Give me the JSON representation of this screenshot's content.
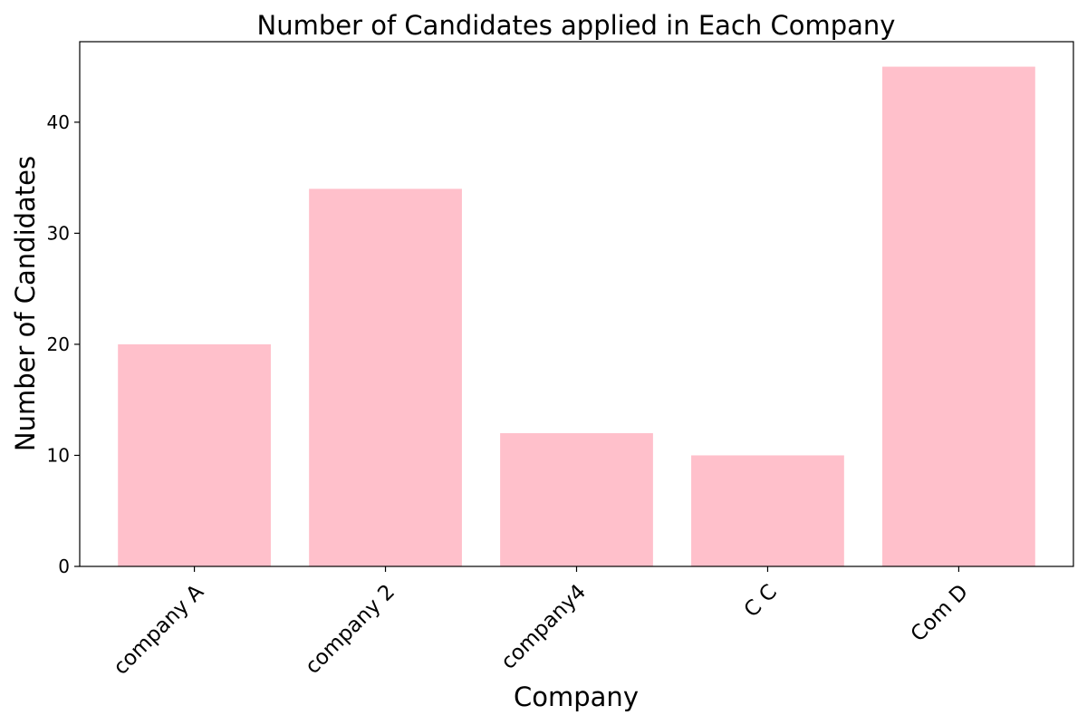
{
  "chart_data": {
    "type": "bar",
    "title": "Number of Candidates applied in Each Company",
    "xlabel": "Company",
    "ylabel": "Number of Candidates",
    "categories": [
      "company A",
      "company 2",
      "company4",
      "C C",
      "Com D"
    ],
    "values": [
      20,
      34,
      12,
      10,
      45
    ],
    "ylim": [
      0,
      47.25
    ],
    "yticks": [
      0,
      10,
      20,
      30,
      40
    ],
    "grid": false,
    "legend": "none",
    "bar_color": "#FFC0CB",
    "x_tick_rotation": 45
  }
}
